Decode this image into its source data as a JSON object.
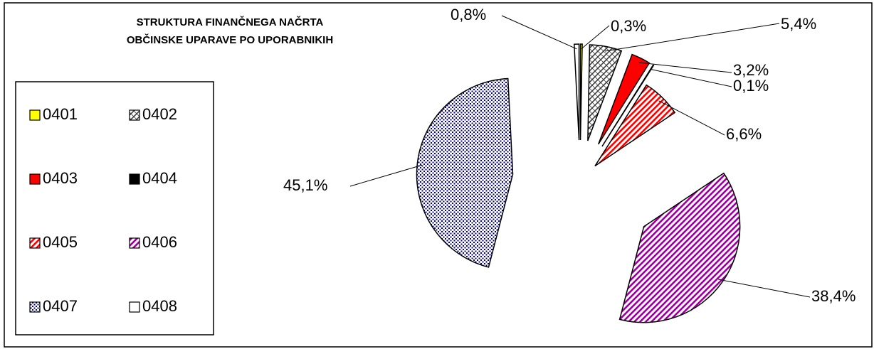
{
  "chart_data": {
    "type": "pie",
    "title": [
      "STRUKTURA FINANČNEGA NAČRTA",
      "OBČINSKE UPARAVE PO UPORABNIKIH"
    ],
    "categories": [
      "0401",
      "0402",
      "0403",
      "0404",
      "0405",
      "0406",
      "0407",
      "0408"
    ],
    "values": [
      0.3,
      5.4,
      3.2,
      0.1,
      6.6,
      38.4,
      45.1,
      0.8
    ],
    "value_labels": [
      "0,3%",
      "5,4%",
      "3,2%",
      "0,1%",
      "6,6%",
      "38,4%",
      "45,1%",
      "0,8%"
    ],
    "colors": [
      "#ffff00",
      "#404040",
      "#ff0000",
      "#000000",
      "#ff0000",
      "#990099",
      "#000080",
      "#ffffff"
    ],
    "patterns": [
      "solid",
      "crosshatch",
      "solid",
      "solid",
      "stripes",
      "stripes",
      "dots",
      "solid"
    ],
    "legend": "left"
  }
}
